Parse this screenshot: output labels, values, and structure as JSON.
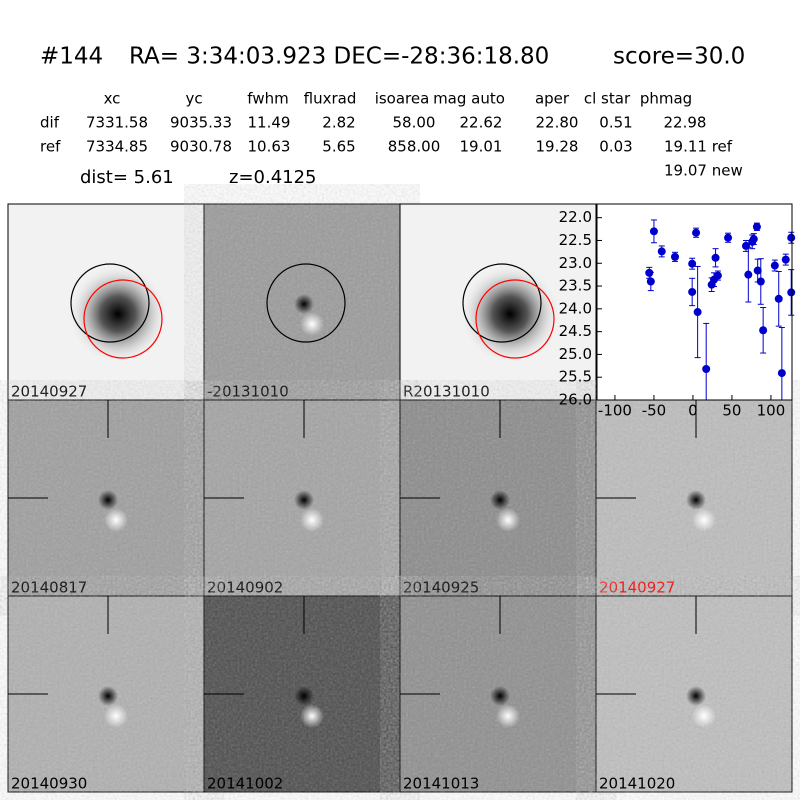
{
  "header": {
    "object": "#144",
    "coords": "RA= 3:34:03.923 DEC=-28:36:18.80",
    "score": "score=30.0",
    "columns": [
      "xc",
      "yc",
      "fwhm",
      "fluxrad",
      "isoarea",
      "mag auto",
      "aper",
      "cl star",
      "phmag"
    ],
    "rows": [
      [
        "dif",
        "7331.58",
        "9035.33",
        "11.49",
        "2.82",
        "58.00",
        "22.62",
        "22.80",
        "0.51",
        "22.98"
      ],
      [
        "ref",
        "7334.85",
        "9030.78",
        "10.63",
        "5.65",
        "858.00",
        "19.01",
        "19.28",
        "0.03",
        "19.11 ref"
      ]
    ],
    "phmag_new": "19.07 new",
    "dist": "dist=  5.61",
    "z": "z=0.4125"
  },
  "panels": [
    "20140927",
    "-20131010",
    "R20131010",
    "20140817",
    "20140902",
    "20140925",
    "20140927",
    "20140930",
    "20141002",
    "20141013",
    "20141020"
  ],
  "chart_data": {
    "type": "scatter",
    "x": [
      -56,
      -54,
      -50,
      -40,
      -23,
      -1,
      -1,
      4,
      6,
      17,
      24,
      27,
      29,
      32,
      45,
      68,
      71,
      76,
      78,
      82,
      83,
      87,
      90,
      105,
      110,
      114,
      119,
      126,
      126
    ],
    "values": [
      23.21,
      23.4,
      22.3,
      22.74,
      22.86,
      23.01,
      23.63,
      22.33,
      24.07,
      25.32,
      23.47,
      23.36,
      22.88,
      23.27,
      22.44,
      22.62,
      23.25,
      22.53,
      22.47,
      22.2,
      23.16,
      23.4,
      24.47,
      23.05,
      23.78,
      25.41,
      22.92,
      22.44,
      23.64
    ],
    "errors": [
      0.12,
      0.2,
      0.25,
      0.12,
      0.1,
      0.12,
      0.3,
      0.1,
      1.0,
      1.0,
      0.15,
      0.15,
      0.2,
      0.1,
      0.1,
      0.12,
      0.6,
      0.15,
      0.12,
      0.08,
      0.25,
      0.5,
      0.5,
      0.12,
      0.6,
      1.0,
      0.12,
      0.12,
      0.5
    ],
    "color": "#0000cc",
    "xlim": [
      -123,
      127
    ],
    "ylim": [
      21.7,
      26.0
    ],
    "y_inverted": true,
    "xticks": [
      -100,
      -50,
      0,
      50,
      100
    ],
    "yticks": [
      {
        "value": 22.0,
        "label": "22.0"
      },
      {
        "value": 22.5,
        "label": "22.5"
      },
      {
        "value": 23.0,
        "label": "23.0"
      },
      {
        "value": 23.5,
        "label": "23.5"
      },
      {
        "value": 24.0,
        "label": "24.0"
      },
      {
        "value": 24.5,
        "label": "24.5"
      },
      {
        "value": 25.0,
        "label": "25.0"
      },
      {
        "value": 25.5,
        "label": "25.5"
      },
      {
        "value": 26.0,
        "label": "26.0"
      }
    ]
  }
}
